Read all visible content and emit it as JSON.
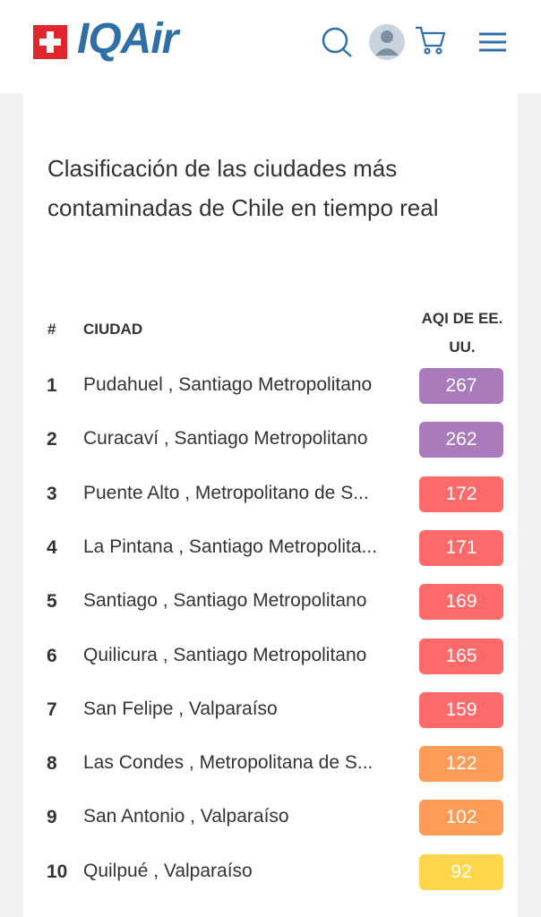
{
  "header": {
    "logo_text": "IQAir"
  },
  "title": "Clasificación de las ciudades más contaminadas de Chile en tiempo real",
  "table": {
    "columns": [
      "#",
      "CIUDAD",
      "AQI DE EE. UU."
    ],
    "rows": [
      {
        "rank": 1,
        "city": "Pudahuel , Santiago Metropolitano",
        "aqi": 267,
        "color": "#a97abc"
      },
      {
        "rank": 2,
        "city": "Curacaví , Santiago Metropolitano",
        "aqi": 262,
        "color": "#a97abc"
      },
      {
        "rank": 3,
        "city": "Puente Alto , Metropolitano de S...",
        "aqi": 172,
        "color": "#fe6a69"
      },
      {
        "rank": 4,
        "city": "La Pintana , Santiago Metropolita...",
        "aqi": 171,
        "color": "#fe6a69"
      },
      {
        "rank": 5,
        "city": "Santiago , Santiago Metropolitano",
        "aqi": 169,
        "color": "#fe6a69"
      },
      {
        "rank": 6,
        "city": "Quilicura , Santiago Metropolitano",
        "aqi": 165,
        "color": "#fe6a69"
      },
      {
        "rank": 7,
        "city": "San Felipe , Valparaíso",
        "aqi": 159,
        "color": "#fe6a69"
      },
      {
        "rank": 8,
        "city": "Las Condes , Metropolitana de S...",
        "aqi": 122,
        "color": "#fe9b57"
      },
      {
        "rank": 9,
        "city": "San Antonio , Valparaíso",
        "aqi": 102,
        "color": "#fe9b57"
      },
      {
        "rank": 10,
        "city": "Quilpué , Valparaíso",
        "aqi": 92,
        "color": "#fdd64b"
      }
    ]
  }
}
